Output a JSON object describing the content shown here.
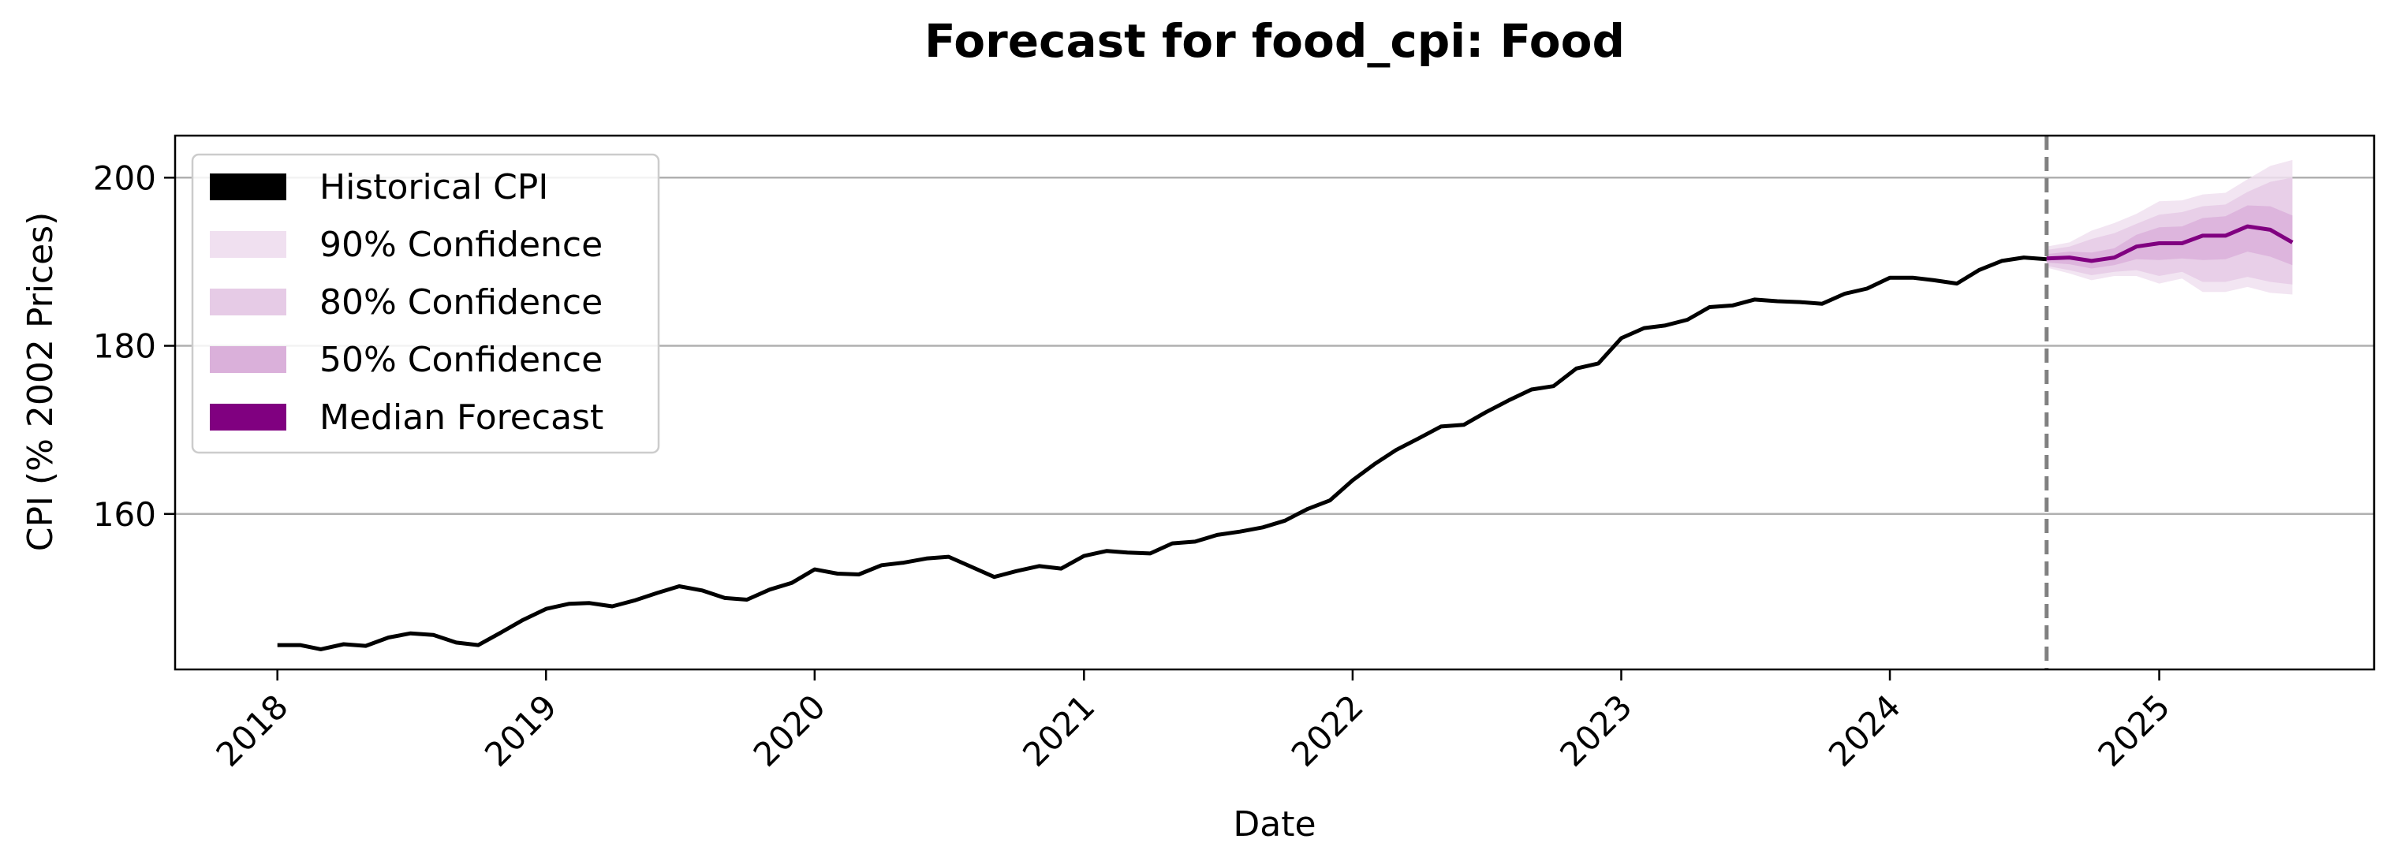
{
  "chart_data": {
    "type": "line",
    "title": "Forecast for food_cpi: Food",
    "xlabel": "Date",
    "ylabel": "CPI (% 2002 Prices)",
    "x_tick_labels": [
      "2018",
      "2019",
      "2020",
      "2021",
      "2022",
      "2023",
      "2024",
      "2025"
    ],
    "y_tick_labels": [
      "160",
      "180",
      "200"
    ],
    "y_ticks": [
      160,
      180,
      200
    ],
    "ylim": [
      141.5,
      205
    ],
    "xlim": [
      "2017-08-15",
      "2025-10-20"
    ],
    "grid": "horizontal",
    "legend_position": "top-left",
    "forecast_start": "2024-08-01",
    "colors": {
      "historical": "#000000",
      "median": "#800080",
      "ci90": "#f0e0f0",
      "ci80": "#e6cbe6",
      "ci50": "#dab0da",
      "forecast_line": "#808080",
      "grid": "#b0b0b0"
    },
    "legend": [
      {
        "label": "Historical CPI",
        "color": "#000000"
      },
      {
        "label": "90% Confidence",
        "color": "#f0e0f0"
      },
      {
        "label": "80% Confidence",
        "color": "#e6cbe6"
      },
      {
        "label": "50% Confidence",
        "color": "#dab0da"
      },
      {
        "label": "Median Forecast",
        "color": "#800080"
      }
    ],
    "series": [
      {
        "name": "Historical CPI",
        "x": [
          "2018-01",
          "2018-02",
          "2018-03",
          "2018-04",
          "2018-05",
          "2018-06",
          "2018-07",
          "2018-08",
          "2018-09",
          "2018-10",
          "2018-11",
          "2018-12",
          "2019-01",
          "2019-02",
          "2019-03",
          "2019-04",
          "2019-05",
          "2019-06",
          "2019-07",
          "2019-08",
          "2019-09",
          "2019-10",
          "2019-11",
          "2019-12",
          "2020-01",
          "2020-02",
          "2020-03",
          "2020-04",
          "2020-05",
          "2020-06",
          "2020-07",
          "2020-08",
          "2020-09",
          "2020-10",
          "2020-11",
          "2020-12",
          "2021-01",
          "2021-02",
          "2021-03",
          "2021-04",
          "2021-05",
          "2021-06",
          "2021-07",
          "2021-08",
          "2021-09",
          "2021-10",
          "2021-11",
          "2021-12",
          "2022-01",
          "2022-02",
          "2022-03",
          "2022-04",
          "2022-05",
          "2022-06",
          "2022-07",
          "2022-08",
          "2022-09",
          "2022-10",
          "2022-11",
          "2022-12",
          "2023-01",
          "2023-02",
          "2023-03",
          "2023-04",
          "2023-05",
          "2023-06",
          "2023-07",
          "2023-08",
          "2023-09",
          "2023-10",
          "2023-11",
          "2023-12",
          "2024-01",
          "2024-02",
          "2024-03",
          "2024-04",
          "2024-05",
          "2024-06",
          "2024-07",
          "2024-08"
        ],
        "values": [
          144.4,
          144.4,
          143.9,
          144.5,
          144.3,
          145.3,
          145.8,
          145.6,
          144.7,
          144.4,
          145.9,
          147.4,
          148.7,
          149.3,
          149.4,
          149.0,
          149.7,
          150.6,
          151.4,
          150.9,
          150.0,
          149.8,
          151.0,
          151.8,
          153.4,
          152.9,
          152.8,
          153.9,
          154.2,
          154.7,
          154.9,
          153.7,
          152.5,
          153.2,
          153.8,
          153.5,
          155.0,
          155.6,
          155.4,
          155.3,
          156.5,
          156.7,
          157.5,
          157.9,
          158.4,
          159.2,
          160.6,
          161.6,
          164.0,
          166.0,
          167.6,
          169.0,
          170.4,
          170.6,
          172.1,
          173.5,
          174.8,
          175.2,
          177.3,
          177.9,
          180.9,
          182.1,
          182.4,
          183.1,
          184.6,
          184.8,
          185.5,
          185.3,
          185.2,
          185.0,
          186.2,
          186.8,
          188.1,
          188.1,
          187.8,
          187.4,
          189.0,
          190.1,
          190.5,
          190.3
        ]
      },
      {
        "name": "Median Forecast",
        "x": [
          "2024-08",
          "2024-09",
          "2024-10",
          "2024-11",
          "2024-12",
          "2025-01",
          "2025-02",
          "2025-03",
          "2025-04",
          "2025-05",
          "2025-06",
          "2025-07"
        ],
        "values": [
          190.4,
          190.5,
          190.1,
          190.5,
          191.8,
          192.2,
          192.2,
          193.1,
          193.1,
          194.2,
          193.8,
          192.3
        ]
      },
      {
        "name": "90% Confidence",
        "x": [
          "2024-08",
          "2024-09",
          "2024-10",
          "2024-11",
          "2024-12",
          "2025-01",
          "2025-02",
          "2025-03",
          "2025-04",
          "2025-05",
          "2025-06",
          "2025-07"
        ],
        "lower": [
          189.3,
          188.6,
          187.8,
          188.3,
          188.3,
          187.4,
          188.0,
          186.4,
          186.4,
          187.0,
          186.3,
          186.1
        ],
        "upper": [
          191.8,
          192.3,
          193.7,
          194.6,
          195.7,
          197.2,
          197.3,
          198.0,
          198.2,
          199.8,
          201.4,
          202.1
        ]
      },
      {
        "name": "80% Confidence",
        "x": [
          "2024-08",
          "2024-09",
          "2024-10",
          "2024-11",
          "2024-12",
          "2025-01",
          "2025-02",
          "2025-03",
          "2025-04",
          "2025-05",
          "2025-06",
          "2025-07"
        ],
        "lower": [
          189.5,
          189.0,
          188.4,
          188.8,
          189.0,
          188.3,
          188.8,
          187.6,
          187.6,
          188.2,
          187.6,
          187.3
        ],
        "upper": [
          191.4,
          191.8,
          192.7,
          193.4,
          194.5,
          195.6,
          195.9,
          196.6,
          196.8,
          198.3,
          199.5,
          200.0
        ]
      },
      {
        "name": "50% Confidence",
        "x": [
          "2024-08",
          "2024-09",
          "2024-10",
          "2024-11",
          "2024-12",
          "2025-01",
          "2025-02",
          "2025-03",
          "2025-04",
          "2025-05",
          "2025-06",
          "2025-07"
        ],
        "lower": [
          189.9,
          189.7,
          189.2,
          189.6,
          190.3,
          190.2,
          190.4,
          190.2,
          190.3,
          191.2,
          190.6,
          189.6
        ],
        "upper": [
          190.9,
          191.2,
          191.1,
          191.6,
          193.2,
          194.1,
          194.2,
          195.2,
          195.4,
          196.7,
          196.6,
          195.5
        ]
      }
    ]
  }
}
